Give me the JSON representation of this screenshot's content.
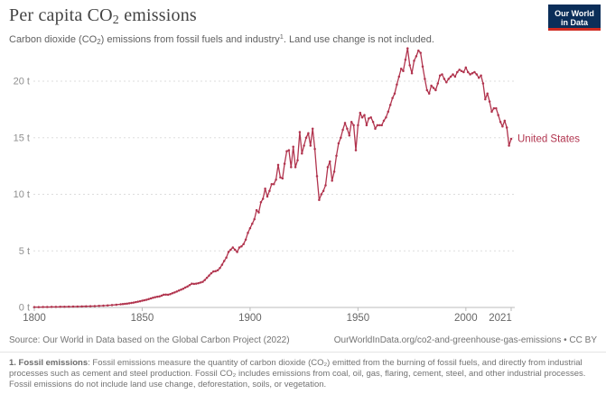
{
  "header": {
    "title_pre": "Per capita CO",
    "title_sub": "2",
    "title_post": " emissions",
    "subtitle_pre": "Carbon dioxide (CO",
    "subtitle_sub": "2",
    "subtitle_mid": ") emissions from fossil fuels and industry",
    "subtitle_sup": "1",
    "subtitle_post": ". Land use change is not included."
  },
  "logo": {
    "line1": "Our World",
    "line2": "in Data",
    "bg_color": "#0b2e59",
    "accent_color": "#d02a20"
  },
  "chart_data": {
    "type": "line",
    "title": "Per capita CO2 emissions",
    "entity": "United States",
    "unit": "tonnes of CO2 per person",
    "color": "#b1344e",
    "axis_color": "#bbbbbb",
    "grid_color": "#dddddd",
    "ytick_color": "#8f8f8f",
    "xtick_color": "#666666",
    "ylim": [
      0,
      23
    ],
    "ytick_values": [
      0,
      5,
      10,
      15,
      20
    ],
    "ytick_labels": [
      "0 t",
      "5 t",
      "10 t",
      "15 t",
      "20 t"
    ],
    "xtick_values": [
      1800,
      1850,
      1900,
      1950,
      2000,
      2021
    ],
    "grid": true,
    "legend_position": "end-of-line-label",
    "start_year": 1800,
    "end_year": 2021,
    "values": [
      0.03,
      0.03,
      0.03,
      0.03,
      0.04,
      0.04,
      0.04,
      0.04,
      0.05,
      0.05,
      0.05,
      0.05,
      0.06,
      0.06,
      0.06,
      0.06,
      0.07,
      0.07,
      0.08,
      0.08,
      0.08,
      0.09,
      0.09,
      0.1,
      0.1,
      0.11,
      0.11,
      0.12,
      0.12,
      0.13,
      0.14,
      0.15,
      0.16,
      0.17,
      0.18,
      0.2,
      0.21,
      0.22,
      0.24,
      0.26,
      0.28,
      0.3,
      0.32,
      0.34,
      0.37,
      0.4,
      0.43,
      0.47,
      0.51,
      0.55,
      0.6,
      0.64,
      0.68,
      0.73,
      0.8,
      0.86,
      0.91,
      0.95,
      0.97,
      1.04,
      1.12,
      1.13,
      1.12,
      1.18,
      1.26,
      1.32,
      1.4,
      1.5,
      1.58,
      1.66,
      1.76,
      1.86,
      1.98,
      2.1,
      2.08,
      2.1,
      2.14,
      2.2,
      2.26,
      2.42,
      2.62,
      2.82,
      3.02,
      3.18,
      3.2,
      3.28,
      3.48,
      3.78,
      4.1,
      4.4,
      4.9,
      5.1,
      5.3,
      5.1,
      4.9,
      5.3,
      5.4,
      5.6,
      6.0,
      6.6,
      7.0,
      7.4,
      7.8,
      8.6,
      8.4,
      9.3,
      9.6,
      10.5,
      9.8,
      10.3,
      10.9,
      10.9,
      11.3,
      12.6,
      11.5,
      11.4,
      12.7,
      13.8,
      13.9,
      12.4,
      14.2,
      12.4,
      13.0,
      15.5,
      13.6,
      14.3,
      15.0,
      15.4,
      14.3,
      15.8,
      14.0,
      11.6,
      9.5,
      10.0,
      10.3,
      10.8,
      12.4,
      12.9,
      11.2,
      12.0,
      13.4,
      14.5,
      15.0,
      15.7,
      16.3,
      15.8,
      15.2,
      16.4,
      16.1,
      13.9,
      16.1,
      17.2,
      16.8,
      17.0,
      16.1,
      16.7,
      16.8,
      16.4,
      15.8,
      16.1,
      16.1,
      16.1,
      16.5,
      16.8,
      17.3,
      17.9,
      18.5,
      18.9,
      19.7,
      20.4,
      21.1,
      20.9,
      21.9,
      22.9,
      21.4,
      20.7,
      21.8,
      22.2,
      22.7,
      22.5,
      21.3,
      20.2,
      19.2,
      18.9,
      19.6,
      19.4,
      19.2,
      19.8,
      20.5,
      20.6,
      20.2,
      19.9,
      20.2,
      20.4,
      20.6,
      20.4,
      20.8,
      21.0,
      20.9,
      20.8,
      21.2,
      20.8,
      20.6,
      20.7,
      20.8,
      20.6,
      20.3,
      20.5,
      19.8,
      18.4,
      18.9,
      18.2,
      17.3,
      17.6,
      17.6,
      17.0,
      16.4,
      16.0,
      16.5,
      15.9,
      14.3,
      14.9
    ]
  },
  "footer": {
    "source": "Source: Our World in Data based on the Global Carbon Project (2022)",
    "link": "OurWorldInData.org/co2-and-greenhouse-gas-emissions • CC BY",
    "note_bold": "1. Fossil emissions",
    "note_rest": ": Fossil emissions measure the quantity of carbon dioxide (CO₂) emitted from the burning of fossil fuels, and directly from industrial processes such as cement and steel production. Fossil CO₂ includes emissions from coal, oil, gas, flaring, cement, steel, and other industrial processes. Fossil emissions do not include land use change, deforestation, soils, or vegetation."
  }
}
